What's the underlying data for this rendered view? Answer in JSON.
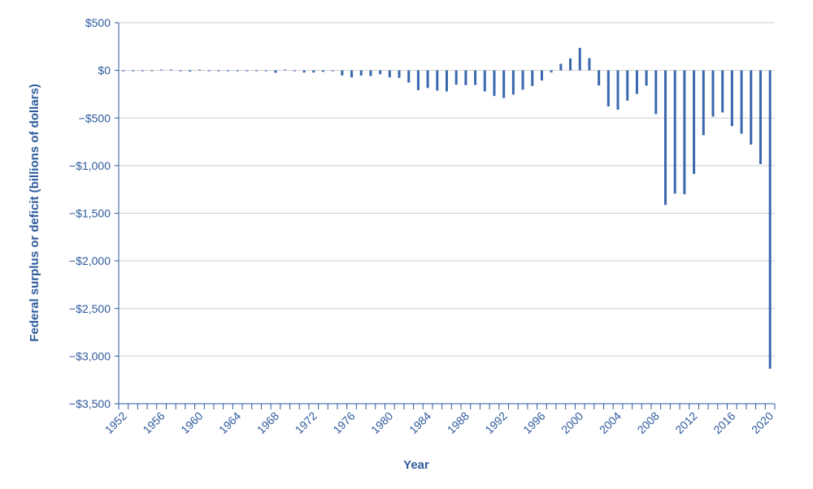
{
  "chart_data": {
    "type": "bar",
    "title": "",
    "xlabel": "Year",
    "ylabel": "Federal surplus or deficit (billions of dollars)",
    "ylim": [
      -3500,
      500
    ],
    "yticks": [
      500,
      0,
      -500,
      -1000,
      -1500,
      -2000,
      -2500,
      -3000,
      -3500
    ],
    "ytick_labels": [
      "$500",
      "$0",
      "−$500",
      "−$1,000",
      "−$1,500",
      "−$2,000",
      "−$2,500",
      "−$3,000",
      "−$3,500"
    ],
    "xticks": [
      1952,
      1956,
      1960,
      1964,
      1968,
      1972,
      1976,
      1980,
      1984,
      1988,
      1992,
      1996,
      2000,
      2004,
      2008,
      2012,
      2016,
      2020
    ],
    "xtick_labels": [
      "1952",
      "1956",
      "1960",
      "1964",
      "1968",
      "1972",
      "1976",
      "1980",
      "1984",
      "1988",
      "1992",
      "1996",
      "2000",
      "2004",
      "2008",
      "2012",
      "2016",
      "2020"
    ],
    "grid": "horizontal",
    "bar_color": "#3a67ad",
    "x": [
      1952,
      1953,
      1954,
      1955,
      1956,
      1957,
      1958,
      1959,
      1960,
      1961,
      1962,
      1963,
      1964,
      1965,
      1966,
      1967,
      1968,
      1969,
      1970,
      1971,
      1972,
      1973,
      1974,
      1975,
      1976,
      1977,
      1978,
      1979,
      1980,
      1981,
      1982,
      1983,
      1984,
      1985,
      1986,
      1987,
      1988,
      1989,
      1990,
      1991,
      1992,
      1993,
      1994,
      1995,
      1996,
      1997,
      1998,
      1999,
      2000,
      2001,
      2002,
      2003,
      2004,
      2005,
      2006,
      2007,
      2008,
      2009,
      2010,
      2011,
      2012,
      2013,
      2014,
      2015,
      2016,
      2017,
      2018,
      2019,
      2020
    ],
    "values": [
      -2,
      -7,
      -1,
      -3,
      4,
      3,
      -3,
      -13,
      0,
      -3,
      -7,
      -5,
      -6,
      -1,
      -4,
      -9,
      -25,
      3,
      -3,
      -23,
      -23,
      -15,
      -6,
      -53,
      -74,
      -54,
      -59,
      -41,
      -74,
      -79,
      -128,
      -208,
      -185,
      -212,
      -221,
      -150,
      -155,
      -153,
      -221,
      -269,
      -290,
      -255,
      -203,
      -164,
      -107,
      -22,
      69,
      126,
      236,
      128,
      -158,
      -378,
      -413,
      -318,
      -248,
      -161,
      -459,
      -1413,
      -1294,
      -1300,
      -1087,
      -680,
      -485,
      -442,
      -585,
      -665,
      -779,
      -984,
      -3132
    ]
  }
}
